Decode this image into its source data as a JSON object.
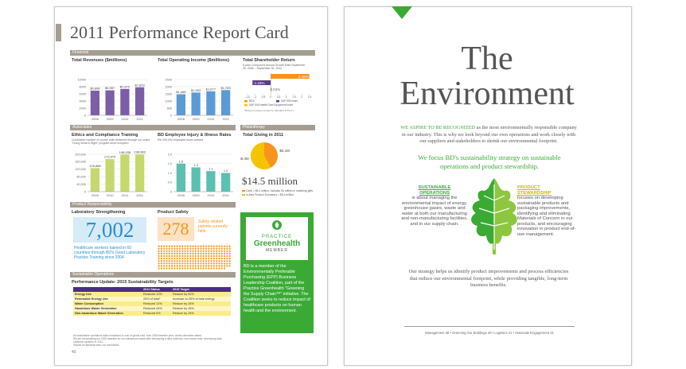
{
  "left_page": {
    "title": "2011 Performance Report Card",
    "page_number": "40",
    "financial": {
      "heading": "Financial",
      "revenues": {
        "type": "bar",
        "title": "Total Revenues ($millions)",
        "categories": [
          "2008",
          "2009",
          "2010",
          "2011"
        ],
        "values": [
          6898,
          6987,
          7372,
          7829
        ],
        "value_labels": [
          "$6,898",
          "$6,987",
          "$7,372",
          "$7,829"
        ],
        "color": "#7b5ea7",
        "ylim": [
          0,
          10000
        ],
        "yticks": [
          0,
          2000,
          4000,
          6000,
          8000,
          10000
        ]
      },
      "operating_income": {
        "type": "bar",
        "title": "Total Operating Income ($millions)",
        "categories": [
          "2008",
          "2009",
          "2010",
          "2011"
        ],
        "values": [
          1468,
          1593,
          1677,
          1763
        ],
        "value_labels": [
          "$1,468",
          "$1,593",
          "$1,677",
          "$1,763"
        ],
        "color": "#5b9bd5",
        "ylim": [
          0,
          2500
        ],
        "yticks": [
          0,
          500,
          1000,
          1500,
          2000,
          2500
        ]
      },
      "shareholder_return": {
        "type": "hbar",
        "title": "Total Shareholder Return",
        "subtitle": "5-year Compound Annual Growth Rate September 30, 2006 – September 30, 2011",
        "series": [
          {
            "name": "BDX",
            "color": "#f7941d",
            "values": [
              2.48
            ],
            "value_labels": [
              "2.48%"
            ]
          },
          {
            "name": "S&P 500 Index",
            "color": "#5b3d8f",
            "values": [
              -1.18
            ],
            "value_labels": [
              "-1.18%"
            ]
          },
          {
            "name": "S&P 500 Health Care Equipment Index",
            "color": "#f5c400",
            "values": [
              0.04
            ],
            "value_labels": [
              "0.04%"
            ]
          }
        ],
        "xlim": [
          -1.5,
          2.5
        ],
        "xticks": [
          -1.5,
          -1,
          -0.5,
          0,
          0.5,
          1,
          1.5,
          2,
          2.5
        ],
        "note": "*Based on data provided by Standard & Poor's"
      }
    },
    "associates": {
      "heading": "Associates",
      "ethics_training": {
        "type": "bar",
        "title": "Ethics and Compliance Training",
        "subtitle": "Cumulative number of course units delivered through our online \"Doing What is Right\" program since inception",
        "categories": [
          "2009",
          "2010",
          "2011",
          "2011"
        ],
        "values": [
          125888,
          173979,
          198935,
          198983
        ],
        "value_labels": [
          "125,888",
          "173,979",
          "198,935",
          "198,983"
        ],
        "color": "#c5d86d",
        "ylim": [
          0,
          200000
        ],
        "yticks": [
          0,
          {
            "value": 40000,
            "label": "40,000"
          },
          {
            "value": 80000,
            "label": "80,000"
          },
          {
            "value": 120000,
            "label": "120,000"
          },
          {
            "value": 160000,
            "label": "160,000"
          },
          {
            "value": 200000,
            "label": "200,000"
          }
        ]
      },
      "injury_rates": {
        "type": "bar",
        "title": "BD Employee Injury & Illness Rates",
        "subtitle": "Per 200,000 employee hours worked",
        "categories": [
          "2008",
          "2009",
          "2010",
          "2011"
        ],
        "values": [
          1.5,
          1.3,
          1.1,
          1.0
        ],
        "value_labels": [
          "1.5",
          "1.3",
          "1.1",
          "1.0"
        ],
        "color": "#5bc0b0",
        "ylim": [
          0,
          2
        ],
        "yticks": [
          0,
          0.5,
          {
            "value": 1,
            "label": "1.0"
          },
          1.5,
          {
            "value": 2,
            "label": "2.0"
          }
        ]
      }
    },
    "philanthropy": {
      "heading": "Philanthropy",
      "giving": {
        "type": "pie",
        "title": "Total Giving in 2011",
        "categories": [
          "Cash = $6.1 million, includes $1 million in matching gifts",
          "In-kind Product Donations = $8.4 million"
        ],
        "values": [
          6.1,
          8.4
        ],
        "value_labels": [
          "$6.1M",
          "$8.4M"
        ],
        "colors": [
          "#f7941d",
          "#f5c400"
        ]
      },
      "total": "$14.5 million"
    },
    "product_responsibility": {
      "heading": "Product Responsibility",
      "lab_title": "Laboratory Strengthening",
      "lab_number": "7,002",
      "lab_text": "Healthcare workers trained in 60 countries through BD's Good Laboratory Practice Training since 2004",
      "safety_title": "Product Safety",
      "safety_number": "278",
      "safety_text": "Safety-related patents currently held",
      "badge": [
        "PRACTICE",
        "Greenhealth",
        "MEMBER"
      ],
      "badge_text": "BD is a member of the Environmentally Preferable Purchasing (EPP) Business Leadership Coalition, part of the Practice Greenhealth \"Greening the Supply Chain™\" initiative. The Coalition seeks to reduce impact of healthcare products on human health and the environment."
    },
    "sustainable_operations": {
      "heading": "Sustainable Operations",
      "table_title": "Performance Update: 2015 Sustainability Targets",
      "table": {
        "header": [
          "2011 Status",
          "2015 Target"
        ],
        "rows": [
          [
            "Energy Use",
            "Reduced 13%",
            "Reduce by 30%"
          ],
          [
            "Renewable Energy Use",
            "25% of total*",
            "Increase to 25% of total energy"
          ],
          [
            "Water Consumption",
            "Reduced 11%",
            "Reduce by 15%"
          ],
          [
            "Hazardous Waste Generation",
            "Reduced 44%",
            "Reduce by 15%"
          ],
          [
            "Non-hazardous Waste Generation",
            "Reduced 6%",
            "Reduce by 15%"
          ]
        ]
      },
      "footnotes": [
        "All sustainable operations data normalized to cost of goods sold, from 2008 baseline year, unless otherwise stated.",
        "We are reevaluating our 2008 baseline for non-hazardous waste after developing a data collection error made when developing data collection systems in 2011.",
        "*Based on absolute data, not normalized."
      ]
    }
  },
  "right_page": {
    "title": [
      "The",
      "Environment"
    ],
    "intro_lead": "WE ASPIRE TO BE RECOGNIZED",
    "intro": " as the most environmentally responsible company in our industry. This is why we look beyond our own operations and work closely with our suppliers and stakeholders to shrink our environmental footprint.",
    "focus": "We focus BD's sustainability strategy on sustainable operations and product stewardship.",
    "left_heading": "SUSTAINABLE OPERATIONS",
    "left_text": "is about managing the environmental impact of energy, greenhouse gases, waste and water at both our manufacturing and non-manufacturing facilities, and in our supply chain.",
    "right_heading": "PRODUCT STEWARDSHIP",
    "right_text": "focuses on developing sustainable products and packaging improvements, identifying and eliminating Materials of Concern in our products, and encouraging innovation in product end-of-use management.",
    "closing": "Our strategy helps us identify product improvements and process efficiencies that reduce our environmental footprint, while providing tangible, long-term business benefits.",
    "footer": "Management 36 • Greening Our Buildings 40 • Logistics 41 • Associate Engagement 41"
  }
}
